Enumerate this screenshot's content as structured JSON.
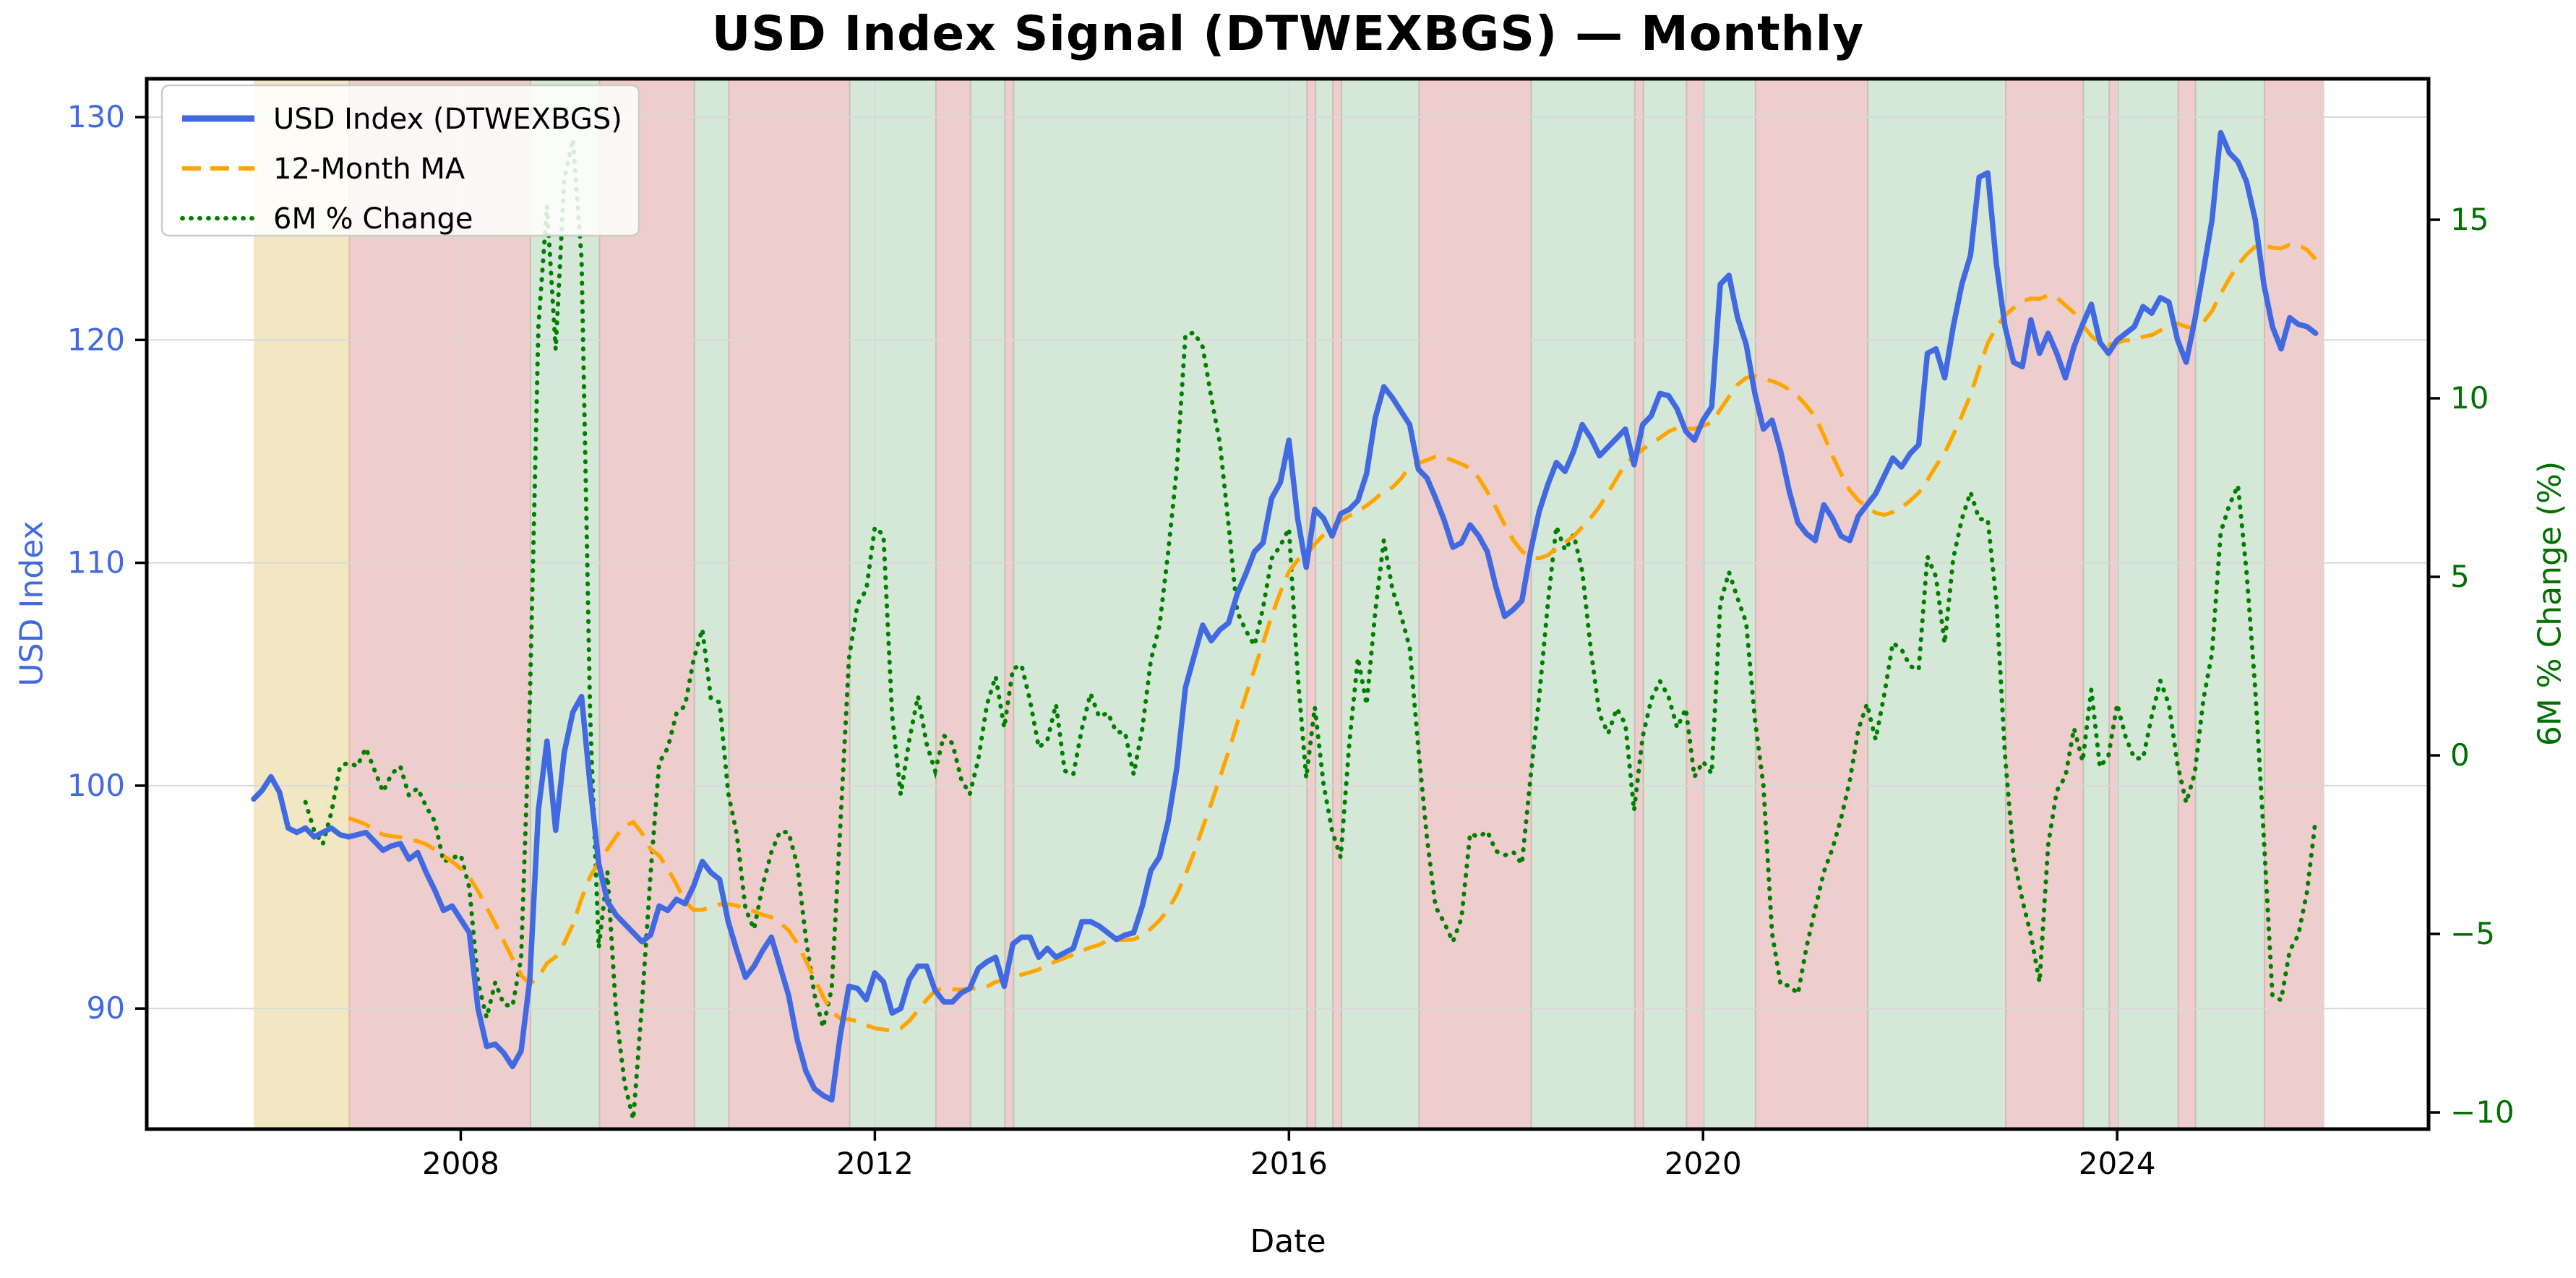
{
  "figure": {
    "title": "USD Index Signal (DTWEXBGS) — Monthly",
    "xlabel": "Date",
    "ylabel_left": "USD Index",
    "ylabel_right": "6M % Change (%)"
  },
  "legend": {
    "items": [
      {
        "label": "USD Index (DTWEXBGS)",
        "color": "#4169e1",
        "style": "solid"
      },
      {
        "label": "12-Month MA",
        "color": "#ffa500",
        "style": "dashed"
      },
      {
        "label": "6M % Change",
        "color": "#008000",
        "style": "dotted"
      }
    ]
  },
  "axes": {
    "x_ticks": [
      {
        "label": "2008",
        "month_index": 24
      },
      {
        "label": "2012",
        "month_index": 72
      },
      {
        "label": "2016",
        "month_index": 120
      },
      {
        "label": "2020",
        "month_index": 168
      },
      {
        "label": "2024",
        "month_index": 216
      }
    ],
    "y_left_ticks": [
      90,
      100,
      110,
      120,
      130
    ],
    "y_right_ticks": [
      -10,
      -5,
      0,
      5,
      10,
      15
    ],
    "y_left_tick_color": "#4169e1",
    "y_right_tick_color": "#007000",
    "x_tick_color": "#000000"
  },
  "signal_colors": {
    "bullish_green": "rgba(46,139,60,0.20)",
    "bearish_red": "rgba(199,91,91,0.30)",
    "warmup_yellow": "rgba(212,175,55,0.30)"
  },
  "line_colors": {
    "usd_index": "#4169e1",
    "ma_12m": "#ffa500",
    "pct_6m": "#008000",
    "grid": "#d9d9d9",
    "spine": "#000000"
  },
  "chart_data": {
    "type": "line",
    "title": "USD Index Signal (DTWEXBGS) — Monthly",
    "xlabel": "Date",
    "ylabel": "USD Index",
    "ylabel2": "6M % Change (%)",
    "frequency": "monthly",
    "x_start": "2006-01",
    "x_end": "2025-12",
    "xlim_months": [
      -12.4,
      252.1
    ],
    "ylim_left": [
      84.6,
      131.7
    ],
    "ylim_right": [
      -10.5,
      18.95
    ],
    "grid": true,
    "legend_position": "upper left",
    "signal_rule": "band is green when USD Index is above its 12-month MA, red when below, yellow for the first 11 months where the MA is undefined",
    "series": [
      {
        "name": "USD Index (DTWEXBGS)",
        "axis": "left",
        "style": "solid",
        "values": [
          99.4,
          99.8,
          100.4,
          99.7,
          98.1,
          97.9,
          98.1,
          97.7,
          97.9,
          98.1,
          97.8,
          97.7,
          97.8,
          97.9,
          97.5,
          97.1,
          97.3,
          97.4,
          96.7,
          97.0,
          96.1,
          95.3,
          94.4,
          94.6,
          94.0,
          93.4,
          90.0,
          88.3,
          88.4,
          88.0,
          87.4,
          88.1,
          91.3,
          98.9,
          102.0,
          98.0,
          101.5,
          103.3,
          104.0,
          100.0,
          96.5,
          94.8,
          94.2,
          93.8,
          93.4,
          93.0,
          93.3,
          94.6,
          94.4,
          94.9,
          94.7,
          95.5,
          96.6,
          96.1,
          95.8,
          93.9,
          92.6,
          91.4,
          91.9,
          92.6,
          93.2,
          91.9,
          90.6,
          88.6,
          87.2,
          86.4,
          86.1,
          85.9,
          88.8,
          91.0,
          90.9,
          90.4,
          91.6,
          91.2,
          89.8,
          90.0,
          91.3,
          91.9,
          91.9,
          90.8,
          90.3,
          90.3,
          90.7,
          90.9,
          91.8,
          92.1,
          92.3,
          91.0,
          92.9,
          93.2,
          93.2,
          92.3,
          92.7,
          92.3,
          92.5,
          92.7,
          93.9,
          93.9,
          93.7,
          93.4,
          93.1,
          93.3,
          93.4,
          94.6,
          96.2,
          96.8,
          98.4,
          100.8,
          104.4,
          105.8,
          107.2,
          106.5,
          107.0,
          107.3,
          108.6,
          109.5,
          110.5,
          110.9,
          112.9,
          113.6,
          115.5,
          112.0,
          109.8,
          112.4,
          112.0,
          111.2,
          112.2,
          112.4,
          112.8,
          114.0,
          116.5,
          117.9,
          117.4,
          116.8,
          116.2,
          114.2,
          113.8,
          112.9,
          111.9,
          110.7,
          110.9,
          111.7,
          111.2,
          110.5,
          108.9,
          107.6,
          107.9,
          108.3,
          110.5,
          112.3,
          113.5,
          114.5,
          114.1,
          115.0,
          116.2,
          115.6,
          114.8,
          115.2,
          115.6,
          116.0,
          114.4,
          116.2,
          116.6,
          117.6,
          117.5,
          116.9,
          115.9,
          115.5,
          116.4,
          117.0,
          122.5,
          122.9,
          121.0,
          119.8,
          117.6,
          116.0,
          116.4,
          115.0,
          113.2,
          111.8,
          111.3,
          111.0,
          112.6,
          112.0,
          111.2,
          111.0,
          112.1,
          112.6,
          113.1,
          113.9,
          114.7,
          114.3,
          114.9,
          115.3,
          119.4,
          119.6,
          118.3,
          120.6,
          122.5,
          123.8,
          127.3,
          127.5,
          123.4,
          120.6,
          119.0,
          118.8,
          120.9,
          119.4,
          120.3,
          119.4,
          118.3,
          119.7,
          120.7,
          121.6,
          119.9,
          119.4,
          120.0,
          120.3,
          120.6,
          121.5,
          121.2,
          121.9,
          121.7,
          120.0,
          119.0,
          120.9,
          123.1,
          125.4,
          129.3,
          128.4,
          128.0,
          127.1,
          125.4,
          122.5,
          120.6,
          119.6,
          121.0,
          120.7,
          120.6,
          120.3
        ]
      },
      {
        "name": "12-Month MA",
        "axis": "left",
        "style": "dashed",
        "derived": "rolling mean of previous 12 monthly USD Index values (undefined for first 11 months)"
      },
      {
        "name": "6M % Change",
        "axis": "right",
        "style": "dotted",
        "derived": "percent change of USD Index vs 6 months earlier (undefined for first 6 months)"
      }
    ]
  }
}
